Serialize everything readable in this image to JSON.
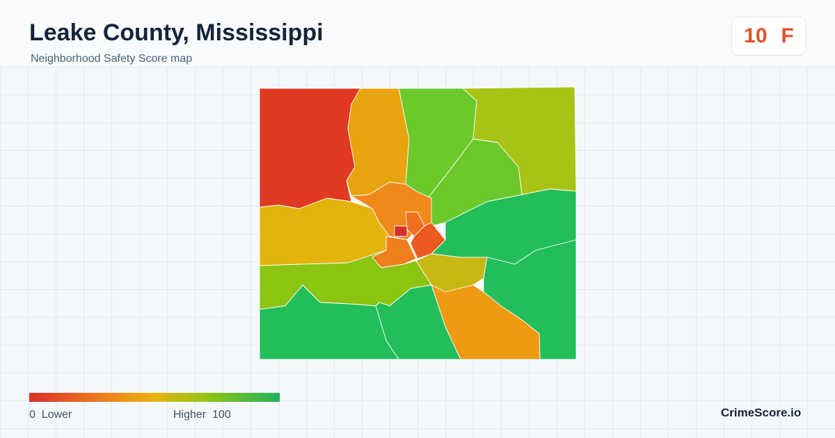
{
  "header": {
    "title": "Leake County, Mississippi",
    "subtitle": "Neighborhood Safety Score map"
  },
  "score": {
    "value": "10",
    "grade": "F"
  },
  "legend": {
    "min": "0",
    "min_label": "Lower",
    "max_label": "Higher",
    "max": "100"
  },
  "brand": "CrimeScore.io"
}
